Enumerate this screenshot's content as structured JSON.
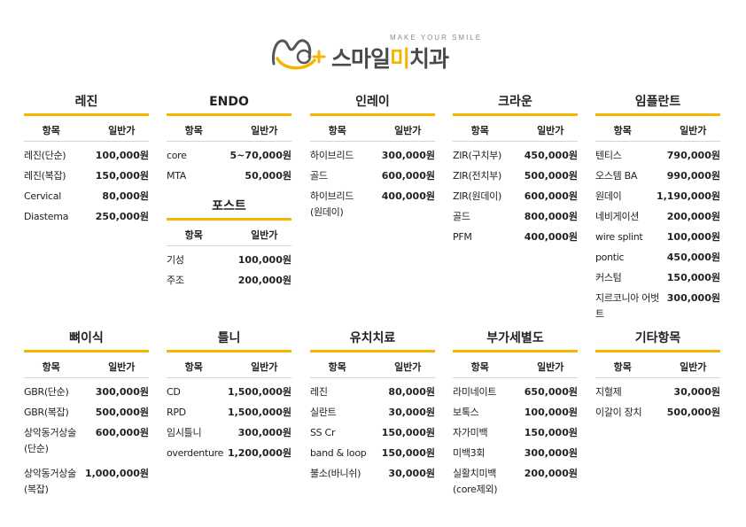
{
  "logo": {
    "tagline": "MAKE YOUR SMILE",
    "name_a": "스마일",
    "name_b": "미",
    "name_c": "치과",
    "accent": "#f5b400"
  },
  "header_cols": {
    "item": "항목",
    "price": "일반가"
  },
  "sections": [
    {
      "title": "레진",
      "rows": [
        [
          "레진(단순)",
          "100,000원"
        ],
        [
          "레진(복잡)",
          "150,000원"
        ],
        [
          "Cervical",
          "80,000원"
        ],
        [
          "Diastema",
          "250,000원"
        ]
      ]
    },
    {
      "title": "ENDO",
      "rows": [
        [
          "core",
          "5~70,000원"
        ],
        [
          "MTA",
          "50,000원"
        ]
      ]
    },
    {
      "title": "포스트",
      "rows": [
        [
          "기성",
          "100,000원"
        ],
        [
          "주조",
          "200,000원"
        ]
      ]
    },
    {
      "title": "인레이",
      "rows": [
        [
          "하이브리드",
          "300,000원"
        ],
        [
          "골드",
          "600,000원"
        ],
        [
          "하이브리드\n(원데이)",
          "400,000원"
        ]
      ]
    },
    {
      "title": "크라운",
      "rows": [
        [
          "ZIR(구치부)",
          "450,000원"
        ],
        [
          "ZIR(전치부)",
          "500,000원"
        ],
        [
          "ZIR(원데이)",
          "600,000원"
        ],
        [
          "골드",
          "800,000원"
        ],
        [
          "PFM",
          "400,000원"
        ]
      ]
    },
    {
      "title": "임플란트",
      "rows": [
        [
          "텐티스",
          "790,000원"
        ],
        [
          "오스템 BA",
          "990,000원"
        ],
        [
          "원데이",
          "1,190,000원"
        ],
        [
          "네비게이션",
          "200,000원"
        ],
        [
          "wire splint",
          "100,000원"
        ],
        [
          "pontic",
          "450,000원"
        ],
        [
          "커스텀",
          "150,000원"
        ],
        [
          "지르코니아 어벗트",
          "300,000원"
        ]
      ]
    },
    {
      "title": "뼈이식",
      "rows": [
        [
          "GBR(단순)",
          "300,000원"
        ],
        [
          "GBR(복잡)",
          "500,000원"
        ],
        [
          "상악동거상술\n(단순)",
          "600,000원"
        ],
        [
          "상악동거상술\n(복잡)",
          "1,000,000원"
        ]
      ]
    },
    {
      "title": "틀니",
      "rows": [
        [
          "CD",
          "1,500,000원"
        ],
        [
          "RPD",
          "1,500,000원"
        ],
        [
          "임시틀니",
          "300,000원"
        ],
        [
          "overdenture",
          "1,200,000원"
        ]
      ]
    },
    {
      "title": "유치치료",
      "rows": [
        [
          "레진",
          "80,000원"
        ],
        [
          "실란트",
          "30,000원"
        ],
        [
          "SS Cr",
          "150,000원"
        ],
        [
          "band & loop",
          "150,000원"
        ],
        [
          "불소(바니쉬)",
          "30,000원"
        ]
      ]
    },
    {
      "title": "부가세별도",
      "rows": [
        [
          "라미네이트",
          "650,000원"
        ],
        [
          "보톡스",
          "100,000원"
        ],
        [
          "자가미백",
          "150,000원"
        ],
        [
          "미백3회",
          "300,000원"
        ],
        [
          "실활치미백\n(core제외)",
          "200,000원"
        ]
      ]
    },
    {
      "title": "기타항목",
      "rows": [
        [
          "지혈제",
          "30,000원"
        ],
        [
          "이갈이 장치",
          "500,000원"
        ]
      ]
    }
  ]
}
